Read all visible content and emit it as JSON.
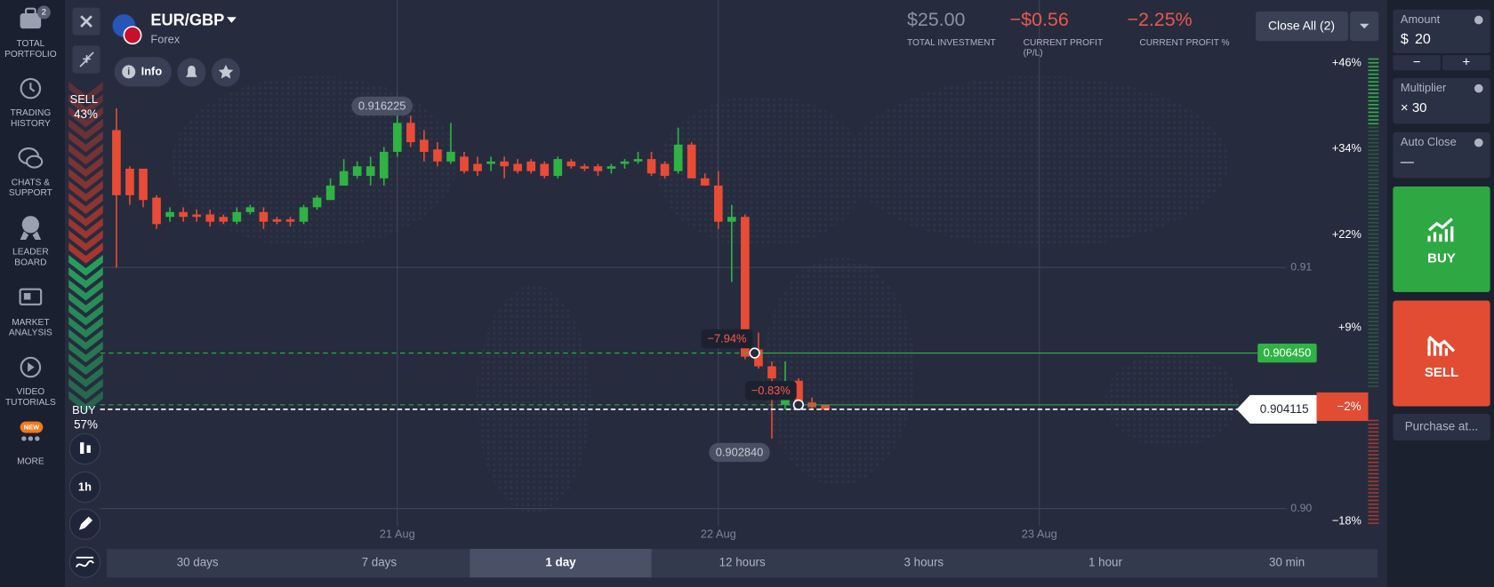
{
  "sidebar": {
    "badge": "2",
    "new_badge": "NEW",
    "items": [
      [
        "TOTAL",
        "PORTFOLIO"
      ],
      [
        "TRADING",
        "HISTORY"
      ],
      [
        "CHATS &",
        "SUPPORT"
      ],
      [
        "LEADER",
        "BOARD"
      ],
      [
        "MARKET",
        "ANALYSIS"
      ],
      [
        "VIDEO",
        "TUTORIALS"
      ],
      [
        "MORE"
      ]
    ]
  },
  "header": {
    "symbol": "EUR/GBP",
    "market": "Forex",
    "info": "Info"
  },
  "stats": [
    {
      "value": "$25.00",
      "label": [
        "TOTAL INVESTMENT"
      ]
    },
    {
      "value": "−$0.56",
      "label": [
        "CURRENT PROFIT",
        "(P/L)"
      ]
    },
    {
      "value": "−2.25%",
      "label": [
        "CURRENT PROFIT %"
      ]
    }
  ],
  "close_all": "Close All (2)",
  "trade_panel": {
    "amount_label": "Amount",
    "amount_currency": "$",
    "amount": "20",
    "minus": "−",
    "plus": "+",
    "multiplier_label": "Multiplier",
    "multiplier": "× 30",
    "auto_close_label": "Auto Close",
    "auto_close": "—",
    "buy": "BUY",
    "sell": "SELL",
    "purchase": "Purchase at..."
  },
  "sentiment": {
    "sell_label": "SELL",
    "sell": "43%",
    "buy_label": "BUY",
    "buy": "57%"
  },
  "chart_tools": [
    "1h"
  ],
  "periods": [
    "30 days",
    "7 days",
    "1 day",
    "12 hours",
    "3 hours",
    "1 hour",
    "30 min"
  ],
  "active_period": 2,
  "chart": {
    "type": "candlestick",
    "up_color": "#2fb344",
    "down_color": "#e94b35",
    "grid": true,
    "xlim": [
      -22.22,
      73.58
    ],
    "xticks": [
      {
        "value": 0,
        "label": "21 Aug"
      },
      {
        "value": 24,
        "label": "22 Aug"
      },
      {
        "value": 48,
        "label": "23 Aug"
      }
    ],
    "ylim": [
      0.8984,
      0.9211
    ],
    "yticks": [
      {
        "value": 0.9,
        "label": "0.90"
      },
      0.91
    ],
    "y2lim": [
      -21.6,
      54.8
    ],
    "y2ticks": [
      {
        "value": 46,
        "label": "+46%"
      },
      {
        "value": 34,
        "label": "+34%"
      },
      {
        "value": 22,
        "label": "+22%"
      },
      {
        "value": 9,
        "label": "+9%"
      },
      {
        "value": -18,
        "label": "−18%"
      }
    ],
    "candles": {
      "x": [
        -21,
        -20,
        -19,
        -18,
        -17,
        -16,
        -15,
        -14,
        -13,
        -12,
        -11,
        -10,
        -9,
        -8,
        -7,
        -6,
        -5,
        -4,
        -3,
        -2,
        -1,
        0,
        1,
        2,
        3,
        4,
        5,
        6,
        7,
        8,
        9,
        10,
        11,
        12,
        13,
        14,
        15,
        16,
        17,
        18,
        19,
        20,
        21,
        22,
        23,
        24,
        25,
        26,
        27,
        28,
        29,
        30,
        31,
        32
      ],
      "open": [
        0.9157,
        0.9141,
        0.9141,
        0.9129,
        0.9121,
        0.9123,
        0.9122,
        0.9122,
        0.9121,
        0.9119,
        0.9123,
        0.9123,
        0.912,
        0.912,
        0.9119,
        0.9125,
        0.9128,
        0.9134,
        0.9138,
        0.9138,
        0.9137,
        0.9148,
        0.916,
        0.9153,
        0.9149,
        0.9144,
        0.9146,
        0.9143,
        0.9143,
        0.9144,
        0.9143,
        0.9144,
        0.9143,
        0.9138,
        0.9144,
        0.9142,
        0.9142,
        0.9141,
        0.9143,
        0.9144,
        0.9145,
        0.9143,
        0.914,
        0.9151,
        0.9137,
        0.9134,
        0.9119,
        0.9121,
        0.9066,
        0.9059,
        0.9043,
        0.9053,
        0.9044,
        0.9043
      ],
      "high": [
        0.9166,
        0.9142,
        0.9141,
        0.913,
        0.9125,
        0.9125,
        0.9124,
        0.9124,
        0.9122,
        0.9125,
        0.9126,
        0.9125,
        0.9121,
        0.9121,
        0.9126,
        0.913,
        0.9137,
        0.9145,
        0.9144,
        0.9146,
        0.915,
        0.9166,
        0.9163,
        0.9157,
        0.9152,
        0.916,
        0.9148,
        0.9146,
        0.9146,
        0.9146,
        0.9145,
        0.9145,
        0.9144,
        0.9146,
        0.9145,
        0.9143,
        0.9143,
        0.9143,
        0.9145,
        0.9148,
        0.9148,
        0.9144,
        0.9158,
        0.9152,
        0.9139,
        0.914,
        0.9126,
        0.9122,
        0.9073,
        0.9061,
        0.9061,
        0.9054,
        0.9046,
        0.9043
      ],
      "low": [
        0.91,
        0.9126,
        0.9125,
        0.9116,
        0.9119,
        0.9119,
        0.9119,
        0.9117,
        0.9118,
        0.9118,
        0.9122,
        0.9116,
        0.9118,
        0.9117,
        0.9118,
        0.9124,
        0.9128,
        0.9134,
        0.9137,
        0.9134,
        0.9134,
        0.9146,
        0.915,
        0.9144,
        0.9142,
        0.9143,
        0.9139,
        0.9138,
        0.914,
        0.9137,
        0.9139,
        0.9139,
        0.9137,
        0.9137,
        0.9141,
        0.914,
        0.9138,
        0.9139,
        0.9141,
        0.9143,
        0.9138,
        0.9137,
        0.9139,
        0.9137,
        0.9134,
        0.9116,
        0.9094,
        0.9062,
        0.9058,
        0.9029,
        0.9041,
        0.9042,
        0.9041,
        0.9041
      ],
      "close": [
        0.913,
        0.913,
        0.9128,
        0.9118,
        0.9123,
        0.9121,
        0.9121,
        0.9119,
        0.9119,
        0.9123,
        0.9125,
        0.9119,
        0.9119,
        0.9119,
        0.9125,
        0.9129,
        0.9134,
        0.914,
        0.9142,
        0.9142,
        0.9148,
        0.916,
        0.9152,
        0.9148,
        0.9144,
        0.9148,
        0.914,
        0.914,
        0.9144,
        0.9142,
        0.914,
        0.914,
        0.9138,
        0.9145,
        0.9142,
        0.9141,
        0.914,
        0.9142,
        0.9144,
        0.9145,
        0.9139,
        0.9138,
        0.9151,
        0.9137,
        0.9134,
        0.9119,
        0.9121,
        0.9063,
        0.9059,
        0.9054,
        0.9045,
        0.9043,
        0.9042,
        0.9041
      ]
    },
    "high_label": 0.916225,
    "low_label": {
      "value": 0.90284,
      "label": "0.902840"
    },
    "deals": [
      {
        "price": {
          "value": 0.90645,
          "label": "0.906450"
        },
        "profit": "−7.94%",
        "color": "#2fb344"
      },
      {
        "price": 0.9043,
        "profit": "−0.83%",
        "color": "#2fb344"
      }
    ],
    "current": {
      "price": 0.904115,
      "profit": {
        "value": -2,
        "label": "−2%"
      }
    }
  }
}
